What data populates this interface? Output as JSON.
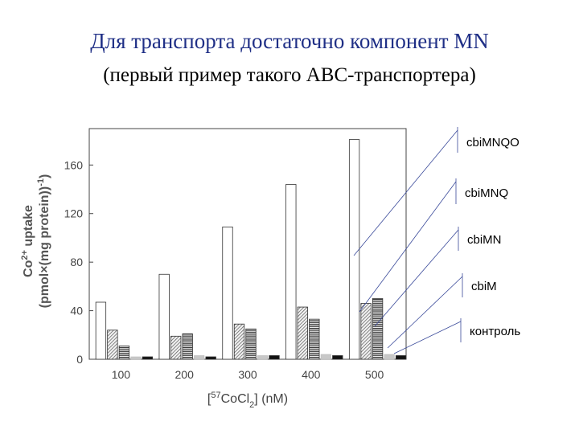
{
  "slide": {
    "title": "Для транспорта достаточно компонент MN",
    "subtitle": "(первый пример такого ABC-транспортера)"
  },
  "chart_data": {
    "type": "bar",
    "categories": [
      "100",
      "200",
      "300",
      "400",
      "500"
    ],
    "series": [
      {
        "name": "cbiMNQO",
        "pattern": "open",
        "values": [
          47,
          70,
          109,
          144,
          181
        ]
      },
      {
        "name": "cbiMNQ",
        "pattern": "hatch-dense",
        "values": [
          24,
          19,
          29,
          43,
          46
        ]
      },
      {
        "name": "cbiMN",
        "pattern": "hatch-horizontal",
        "values": [
          11,
          21,
          25,
          33,
          50
        ]
      },
      {
        "name": "cbiM",
        "pattern": "light-gray",
        "values": [
          2,
          3,
          3,
          4,
          4
        ]
      },
      {
        "name": "контроль",
        "pattern": "black",
        "values": [
          2,
          2,
          3,
          3,
          3
        ]
      }
    ],
    "ylabel": "Co2+ uptake (pmol×(mg protein)-1)",
    "xlabel": "[57CoCl2] (nM)",
    "ylim": [
      0,
      190
    ],
    "yticks": [
      0,
      40,
      80,
      120,
      160
    ],
    "grid": false,
    "legend_placement": "right"
  }
}
